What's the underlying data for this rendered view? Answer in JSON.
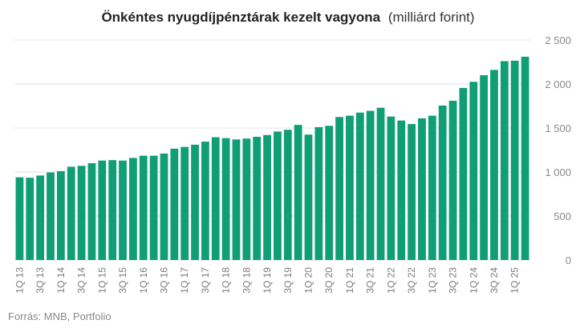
{
  "chart_data": {
    "type": "bar",
    "title": "Önkéntes nyugdíjpénztárak kezelt vagyona",
    "subtitle": "(milliárd forint)",
    "source": "Forrás: MNB, Portfolio",
    "ylim": [
      0,
      2500
    ],
    "yticks": [
      0,
      500,
      1000,
      1500,
      2000,
      2500
    ],
    "ytick_labels": [
      "0",
      "500",
      "1 000",
      "1 500",
      "2 000",
      "2 500"
    ],
    "grid": true,
    "categories": [
      "1Q 13",
      "2Q 13",
      "3Q 13",
      "4Q 13",
      "1Q 14",
      "2Q 14",
      "3Q 14",
      "4Q 14",
      "1Q 15",
      "2Q 15",
      "3Q 15",
      "4Q 15",
      "1Q 16",
      "2Q 16",
      "3Q 16",
      "4Q 16",
      "1Q 17",
      "2Q 17",
      "3Q 17",
      "4Q 17",
      "1Q 18",
      "2Q 18",
      "3Q 18",
      "4Q 18",
      "1Q 19",
      "2Q 19",
      "3Q 19",
      "4Q 19",
      "1Q 20",
      "2Q 20",
      "3Q 20",
      "4Q 20",
      "1Q 21",
      "2Q 21",
      "3Q 21",
      "4Q 21",
      "1Q 22",
      "2Q 22",
      "3Q 22",
      "4Q 22",
      "1Q 23",
      "2Q 23",
      "3Q 23",
      "4Q 23",
      "1Q 24",
      "2Q 24",
      "3Q 24",
      "4Q 24",
      "1Q 25",
      "2Q 25"
    ],
    "label_every": 2,
    "values": [
      940,
      935,
      960,
      995,
      1010,
      1060,
      1070,
      1100,
      1130,
      1135,
      1130,
      1160,
      1185,
      1185,
      1210,
      1265,
      1285,
      1310,
      1345,
      1395,
      1385,
      1370,
      1380,
      1400,
      1420,
      1460,
      1480,
      1535,
      1425,
      1510,
      1525,
      1625,
      1640,
      1675,
      1695,
      1730,
      1630,
      1585,
      1545,
      1610,
      1640,
      1755,
      1810,
      1955,
      2025,
      2100,
      2160,
      2260,
      2265,
      2310
    ],
    "colors": {
      "bar": "#0f9e76",
      "grid": "#e3e3e3"
    }
  }
}
